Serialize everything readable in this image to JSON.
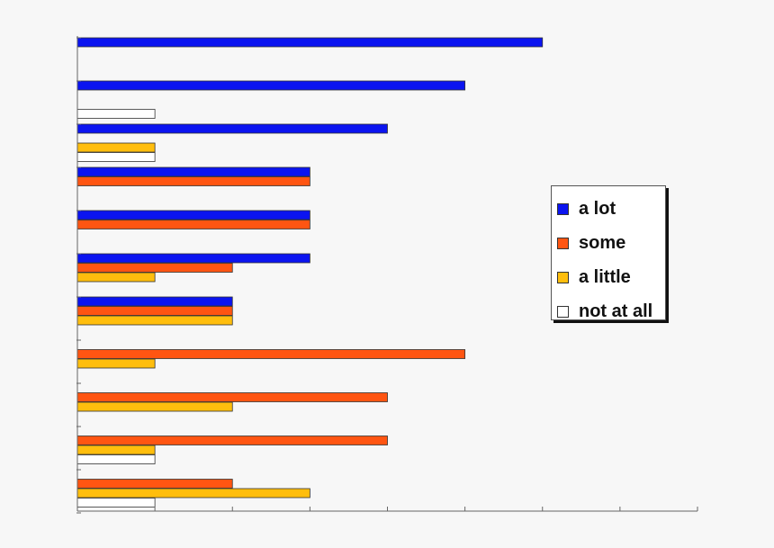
{
  "chart_data": {
    "type": "bar",
    "orientation": "horizontal",
    "xlim": [
      0,
      8
    ],
    "grid": false,
    "legend_position": "right",
    "categories": [
      "",
      "",
      "",
      "",
      "",
      "",
      "",
      "",
      "",
      "",
      "",
      ""
    ],
    "series": [
      {
        "name": "a lot",
        "color": "#0b14f0",
        "values": [
          6,
          5,
          4,
          3,
          3,
          3,
          2,
          0,
          0,
          0,
          0,
          0
        ]
      },
      {
        "name": "some",
        "color": "#ff5512",
        "values": [
          0,
          0,
          0,
          3,
          3,
          2,
          2,
          5,
          4,
          4,
          2,
          0
        ]
      },
      {
        "name": "a little",
        "color": "#ffbe0d",
        "values": [
          0,
          0,
          1,
          0,
          0,
          1,
          2,
          1,
          2,
          1,
          3,
          0
        ]
      },
      {
        "name": "not at all",
        "color": "#ffffff",
        "values": [
          0,
          1,
          1,
          0,
          0,
          0,
          0,
          0,
          0,
          1,
          1,
          0
        ]
      }
    ]
  },
  "legend": {
    "items": [
      {
        "label": "a lot",
        "color": "#0b14f0"
      },
      {
        "label": "some",
        "color": "#ff5512"
      },
      {
        "label": "a little",
        "color": "#ffbe0d"
      },
      {
        "label": "not at all",
        "color": "#ffffff"
      }
    ]
  }
}
